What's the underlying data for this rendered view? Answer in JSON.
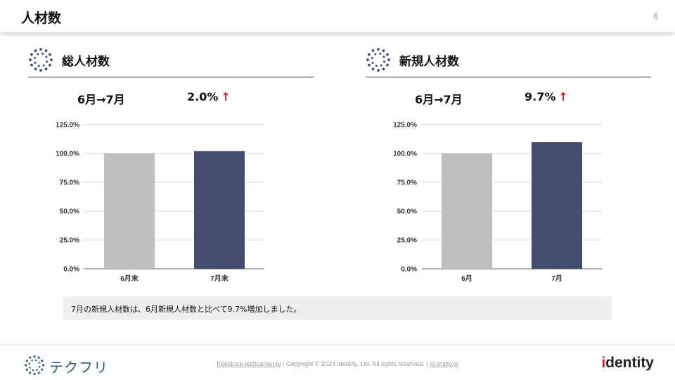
{
  "slide": {
    "title": "人材数",
    "page": "6"
  },
  "panels": [
    {
      "title": "総人材数",
      "period": "6月→7月",
      "rate": "2.0%",
      "arrow": "↑",
      "chart_data": {
        "type": "bar",
        "categories": [
          "6月末",
          "7月末"
        ],
        "values": [
          100.0,
          102.0
        ],
        "unit": "%",
        "ylim": [
          0,
          125
        ],
        "yticks": [
          "0.0%",
          "25.0%",
          "50.0%",
          "75.0%",
          "100.0%",
          "125.0%"
        ],
        "colors": [
          "#bfbfbf",
          "#434d72"
        ],
        "grid": true
      }
    },
    {
      "title": "新規人材数",
      "period": "6月→7月",
      "rate": "9.7%",
      "arrow": "↑",
      "chart_data": {
        "type": "bar",
        "categories": [
          "6月",
          "7月"
        ],
        "values": [
          100.0,
          109.7
        ],
        "unit": "%",
        "ylim": [
          0,
          125
        ],
        "yticks": [
          "0.0%",
          "25.0%",
          "50.0%",
          "75.0%",
          "100.0%",
          "125.0%"
        ],
        "colors": [
          "#bfbfbf",
          "#434d72"
        ],
        "grid": true
      }
    }
  ],
  "note": "7月の新規人材数は、6月新規人材数と比べて9.7%増加しました。",
  "footer": {
    "brand": "テクフリ",
    "link1": "freelance.techcareer.jp",
    "separator": "|",
    "copyright": "Copyright © 2024 identity, Ltd. All rights reserved.",
    "link2": "id-entity.jp",
    "logo_first": "i",
    "logo_rest": "dentity"
  },
  "colors": {
    "accent_red": "#d21f1f",
    "bar_primary": "#434d72",
    "bar_secondary": "#bfbfbf",
    "brand_blue": "#2f5c7a"
  }
}
